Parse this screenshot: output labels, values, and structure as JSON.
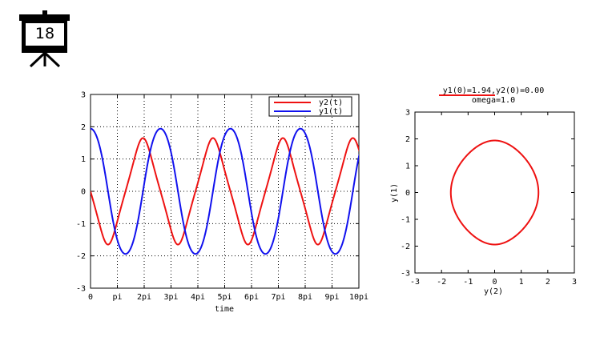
{
  "slide": {
    "number": "18"
  },
  "chart_data": [
    {
      "type": "line",
      "title": "",
      "xlabel": "time",
      "ylabel": "",
      "xlim_pi": [
        0,
        10
      ],
      "ylim": [
        -3,
        3
      ],
      "grid": true,
      "legend_position": "top-right",
      "x_ticks": [
        "0",
        "pi",
        "2pi",
        "3pi",
        "4pi",
        "5pi",
        "6pi",
        "7pi",
        "8pi",
        "9pi",
        "10pi"
      ],
      "y_ticks": [
        "3",
        "2",
        "1",
        "0",
        "-1",
        "-2",
        "-3"
      ],
      "series": [
        {
          "name": "y2(t)",
          "color": "#ee1111",
          "initial": {
            "y1": 1.94,
            "y2": 0.0
          },
          "omega": 1.0,
          "component": "y2"
        },
        {
          "name": "y1(t)",
          "color": "#1111ee",
          "initial": {
            "y1": 1.94,
            "y2": 0.0
          },
          "omega": 1.0,
          "component": "y1"
        }
      ]
    },
    {
      "type": "line",
      "title_line1": "y1(0)=1.94,y2(0)=0.00",
      "title_line2": "omega=1.0",
      "xlabel": "y(2)",
      "ylabel": "y(1)",
      "xlim": [
        -3,
        3
      ],
      "ylim": [
        -3,
        3
      ],
      "grid": false,
      "x_ticks": [
        "-3",
        "-2",
        "-1",
        "0",
        "1",
        "2",
        "3"
      ],
      "y_ticks": [
        "3",
        "2",
        "1",
        "0",
        "-1",
        "-2",
        "-3"
      ],
      "series": [
        {
          "color": "#ee1111",
          "initial": {
            "y1": 1.94,
            "y2": 0.0
          },
          "omega": 1.0,
          "x_component": "y2",
          "y_component": "y1"
        }
      ]
    }
  ]
}
